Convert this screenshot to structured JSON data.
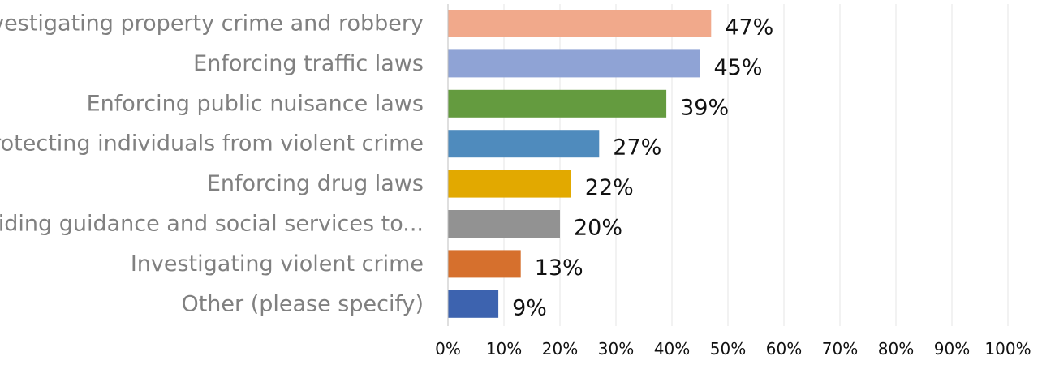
{
  "chart_data": {
    "type": "bar",
    "orientation": "horizontal",
    "categories": [
      "Investigating property crime and robbery",
      "Enforcing traffic laws",
      "Enforcing public nuisance laws",
      "Protecting individuals from violent crime",
      "Enforcing drug laws",
      "Providing guidance and social services to...",
      "Investigating violent crime",
      "Other (please specify)"
    ],
    "values": [
      47,
      45,
      39,
      27,
      22,
      20,
      13,
      9
    ],
    "data_labels": [
      "47%",
      "45%",
      "39%",
      "27%",
      "22%",
      "20%",
      "13%",
      "9%"
    ],
    "bar_colors": [
      "#f1a98b",
      "#8fa3d5",
      "#649b3f",
      "#4f8bbd",
      "#e2a900",
      "#929292",
      "#d6702d",
      "#3d63af"
    ],
    "x_ticks": [
      0,
      10,
      20,
      30,
      40,
      50,
      60,
      70,
      80,
      90,
      100
    ],
    "x_tick_labels": [
      "0%",
      "10%",
      "20%",
      "30%",
      "40%",
      "50%",
      "60%",
      "70%",
      "80%",
      "90%",
      "100%"
    ],
    "xlim": [
      0,
      100
    ],
    "grid": true,
    "legend": "none",
    "title": "",
    "xlabel": "",
    "ylabel": ""
  }
}
